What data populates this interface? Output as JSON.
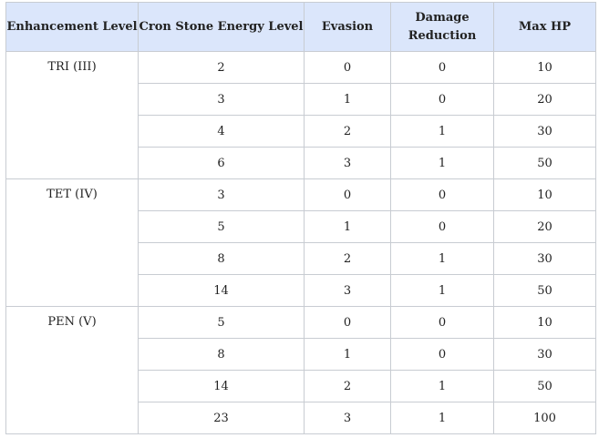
{
  "table": {
    "headers": [
      "Enhancement Level",
      "Cron Stone Energy Level",
      "Evasion",
      "Damage Reduction",
      "Max HP"
    ],
    "groups": [
      {
        "level": "TRI (III)",
        "rows": [
          [
            "2",
            "0",
            "0",
            "10"
          ],
          [
            "3",
            "1",
            "0",
            "20"
          ],
          [
            "4",
            "2",
            "1",
            "30"
          ],
          [
            "6",
            "3",
            "1",
            "50"
          ]
        ]
      },
      {
        "level": "TET (IV)",
        "rows": [
          [
            "3",
            "0",
            "0",
            "10"
          ],
          [
            "5",
            "1",
            "0",
            "20"
          ],
          [
            "8",
            "2",
            "1",
            "30"
          ],
          [
            "14",
            "3",
            "1",
            "50"
          ]
        ]
      },
      {
        "level": "PEN (V)",
        "rows": [
          [
            "5",
            "0",
            "0",
            "10"
          ],
          [
            "8",
            "1",
            "0",
            "30"
          ],
          [
            "14",
            "2",
            "1",
            "50"
          ],
          [
            "23",
            "3",
            "1",
            "100"
          ]
        ]
      }
    ]
  },
  "colors": {
    "header_background": "#dbe6fb",
    "border": "#c8ccd2",
    "text": "#222222"
  }
}
